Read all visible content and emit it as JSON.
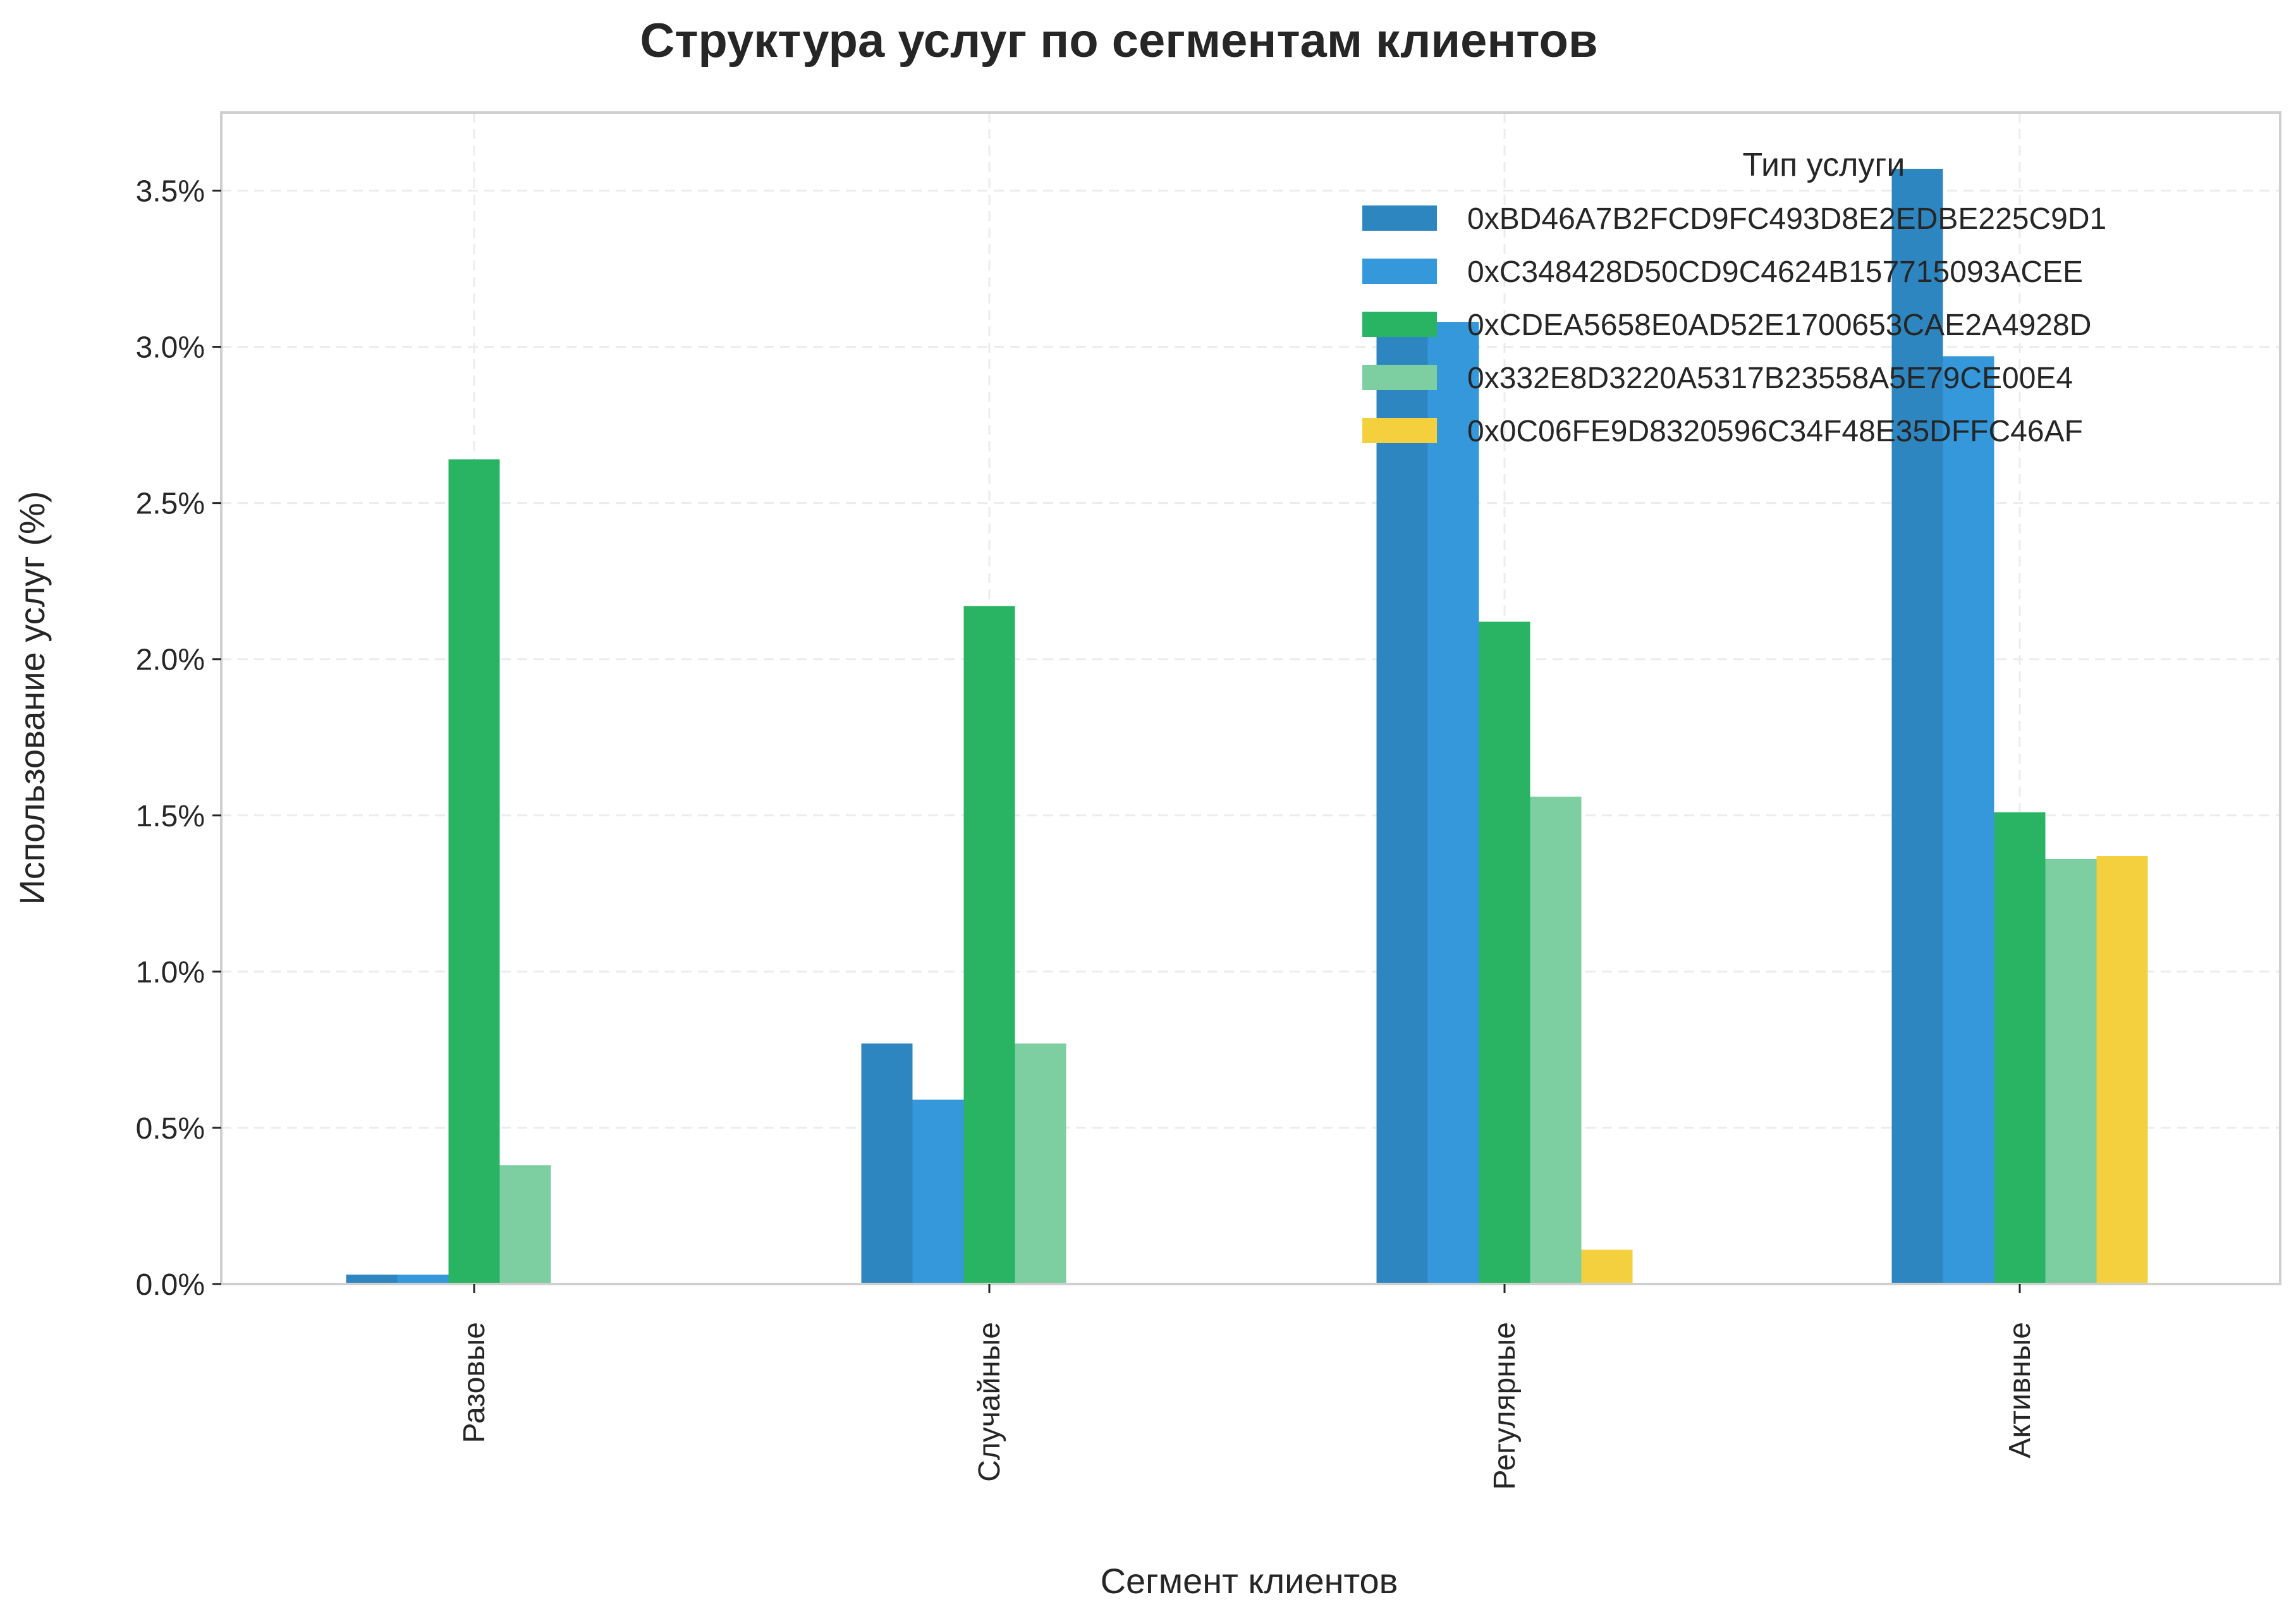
{
  "chart_data": {
    "type": "bar",
    "title": "Структура услуг по сегментам клиентов",
    "xlabel": "Сегмент клиентов",
    "ylabel": "Использование услуг (%)",
    "categories": [
      "Разовые",
      "Случайные",
      "Регулярные",
      "Активные"
    ],
    "ylim": [
      0,
      3.75
    ],
    "yticks": [
      0,
      0.5,
      1.0,
      1.5,
      2.0,
      2.5,
      3.0,
      3.5
    ],
    "ytick_labels": [
      "0.0%",
      "0.5%",
      "1.0%",
      "1.5%",
      "2.0%",
      "2.5%",
      "3.0%",
      "3.5%"
    ],
    "grid": true,
    "legend": {
      "title": "Тип услуги",
      "placement": "top-right"
    },
    "series": [
      {
        "name": "0xBD46A7B2FCD9FC493D8E2EDBE225C9D1",
        "color": "#2e86c1",
        "values": [
          0.03,
          0.77,
          3.08,
          3.57
        ]
      },
      {
        "name": "0xC348428D50CD9C4624B157715093ACEE",
        "color": "#3498db",
        "values": [
          0.03,
          0.59,
          3.08,
          2.97
        ]
      },
      {
        "name": "0xCDEA5658E0AD52E1700653CAE2A4928D",
        "color": "#28b463",
        "values": [
          2.64,
          2.17,
          2.12,
          1.51
        ]
      },
      {
        "name": "0x332E8D3220A5317B23558A5E79CE00E4",
        "color": "#7dcea0",
        "values": [
          0.38,
          0.77,
          1.56,
          1.36
        ]
      },
      {
        "name": "0x0C06FE9D8320596C34F48E35DFFC46AF",
        "color": "#f4d03f",
        "values": [
          0.0,
          0.0,
          0.11,
          1.37
        ]
      }
    ]
  }
}
